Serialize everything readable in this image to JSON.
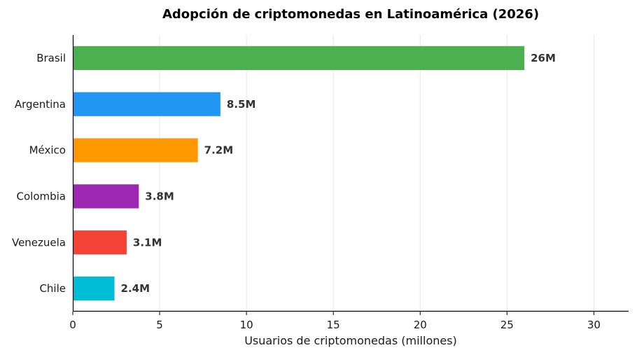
{
  "chart_data": {
    "type": "bar",
    "orientation": "horizontal",
    "title": "Adopción de criptomonedas en Latinoamérica (2026)",
    "xlabel": "Usuarios de criptomonedas (millones)",
    "ylabel": "",
    "xlim": [
      0,
      32
    ],
    "xticks": [
      0,
      5,
      10,
      15,
      20,
      25,
      30
    ],
    "grid": "vertical",
    "categories": [
      "Brasil",
      "Argentina",
      "México",
      "Colombia",
      "Venezuela",
      "Chile"
    ],
    "values": [
      26,
      8.5,
      7.2,
      3.8,
      3.1,
      2.4
    ],
    "data_labels": [
      "26M",
      "8.5M",
      "7.2M",
      "3.8M",
      "3.1M",
      "2.4M"
    ],
    "colors": [
      "#4caf50",
      "#2196f3",
      "#ff9800",
      "#9c27b0",
      "#f44336",
      "#00bcd4"
    ]
  }
}
